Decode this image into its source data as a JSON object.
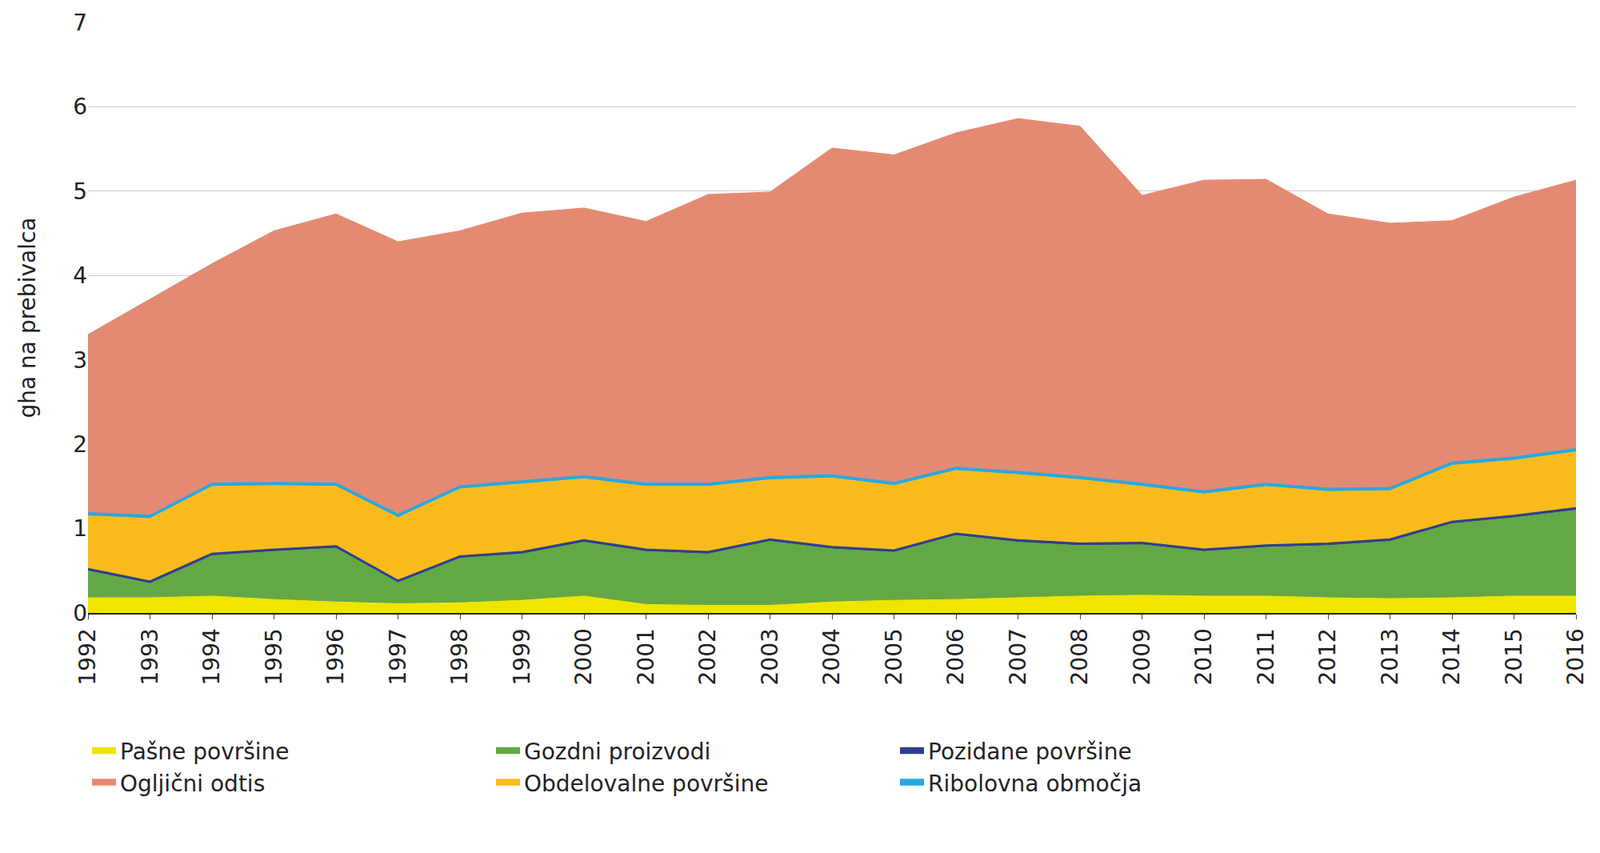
{
  "chart_data": {
    "type": "area",
    "stacked": true,
    "grid": true,
    "legend": "bottom",
    "y_label": "gha na prebivalca",
    "x": [
      1992,
      1993,
      1994,
      1995,
      1996,
      1997,
      1998,
      1999,
      2000,
      2001,
      2002,
      2003,
      2004,
      2005,
      2006,
      2007,
      2008,
      2009,
      2010,
      2011,
      2012,
      2013,
      2014,
      2015,
      2016
    ],
    "xlim": [
      1992,
      2016
    ],
    "xticks": [
      1992,
      1993,
      1994,
      1995,
      1996,
      1997,
      1998,
      1999,
      2000,
      2001,
      2002,
      2003,
      2004,
      2005,
      2006,
      2007,
      2008,
      2009,
      2010,
      2011,
      2012,
      2013,
      2014,
      2015,
      2016
    ],
    "ylim": [
      0,
      7
    ],
    "yticks": [
      0,
      1,
      2,
      3,
      4,
      5,
      6,
      7
    ],
    "series": [
      {
        "name": "Pašne površine",
        "color": "#f0e500",
        "values": [
          0.18,
          0.18,
          0.2,
          0.16,
          0.13,
          0.11,
          0.12,
          0.15,
          0.2,
          0.1,
          0.09,
          0.09,
          0.13,
          0.15,
          0.16,
          0.18,
          0.2,
          0.21,
          0.2,
          0.2,
          0.18,
          0.17,
          0.18,
          0.2,
          0.2
        ]
      },
      {
        "name": "Gozdni proizvodi",
        "color": "#63a844",
        "values": [
          0.32,
          0.17,
          0.48,
          0.57,
          0.64,
          0.25,
          0.53,
          0.55,
          0.64,
          0.63,
          0.61,
          0.76,
          0.63,
          0.57,
          0.76,
          0.66,
          0.6,
          0.6,
          0.53,
          0.58,
          0.62,
          0.68,
          0.88,
          0.93,
          1.02
        ]
      },
      {
        "name": "Pozidane površine",
        "color": "#2e3f8f",
        "values": [
          0.02,
          0.02,
          0.02,
          0.02,
          0.02,
          0.02,
          0.02,
          0.02,
          0.02,
          0.02,
          0.02,
          0.02,
          0.02,
          0.02,
          0.02,
          0.02,
          0.02,
          0.02,
          0.02,
          0.02,
          0.02,
          0.02,
          0.02,
          0.02,
          0.02
        ]
      },
      {
        "name": "Obdelovalne površine",
        "color": "#f9bb1c",
        "values": [
          0.63,
          0.75,
          0.8,
          0.76,
          0.71,
          0.75,
          0.8,
          0.81,
          0.73,
          0.75,
          0.78,
          0.71,
          0.82,
          0.77,
          0.75,
          0.78,
          0.76,
          0.67,
          0.66,
          0.7,
          0.62,
          0.58,
          0.67,
          0.66,
          0.67
        ]
      },
      {
        "name": "Ribolovna območja",
        "color": "#29a8e0",
        "values": [
          0.03,
          0.03,
          0.03,
          0.03,
          0.03,
          0.03,
          0.03,
          0.03,
          0.03,
          0.03,
          0.03,
          0.03,
          0.03,
          0.03,
          0.03,
          0.03,
          0.03,
          0.03,
          0.03,
          0.03,
          0.03,
          0.03,
          0.03,
          0.03,
          0.03
        ]
      },
      {
        "name": "Ogljični odtis",
        "color": "#e58a72",
        "values": [
          2.12,
          2.57,
          2.61,
          2.99,
          3.2,
          3.24,
          3.03,
          3.18,
          3.18,
          3.11,
          3.43,
          3.38,
          3.88,
          3.89,
          3.97,
          4.19,
          4.16,
          3.42,
          3.69,
          3.61,
          3.26,
          3.14,
          2.87,
          3.09,
          3.19
        ]
      }
    ]
  }
}
